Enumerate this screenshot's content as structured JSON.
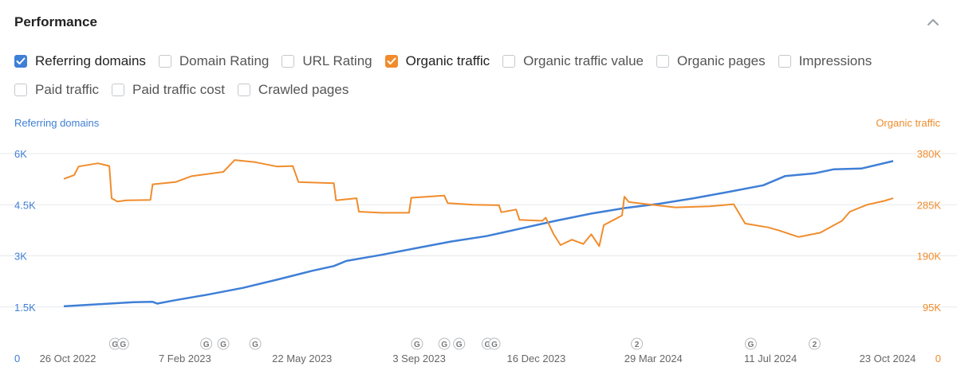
{
  "header": {
    "title": "Performance"
  },
  "metrics": [
    {
      "label": "Referring domains",
      "checked": true,
      "color": "#3f7fd6"
    },
    {
      "label": "Domain Rating",
      "checked": false
    },
    {
      "label": "URL Rating",
      "checked": false
    },
    {
      "label": "Organic traffic",
      "checked": true,
      "color": "#f08c2c"
    },
    {
      "label": "Organic traffic value",
      "checked": false
    },
    {
      "label": "Organic pages",
      "checked": false
    },
    {
      "label": "Impressions",
      "checked": false
    },
    {
      "label": "Paid traffic",
      "checked": false
    },
    {
      "label": "Paid traffic cost",
      "checked": false
    },
    {
      "label": "Crawled pages",
      "checked": false
    }
  ],
  "chart_data": {
    "type": "line",
    "left_axis_title": "Referring domains",
    "right_axis_title": "Organic traffic",
    "left_ticks": [
      "6K",
      "4.5K",
      "3K",
      "1.5K",
      "0"
    ],
    "right_ticks": [
      "380K",
      "285K",
      "190K",
      "95K",
      "0"
    ],
    "left_ylim": [
      0,
      6000
    ],
    "right_ylim": [
      0,
      380000
    ],
    "grid": true,
    "x_range": [
      "2022-10-26",
      "2024-10-23"
    ],
    "x_ticks": [
      "26 Oct 2022",
      "7 Feb 2023",
      "22 May 2023",
      "3 Sep 2023",
      "16 Dec 2023",
      "29 Mar 2024",
      "11 Jul 2024",
      "23 Oct 2024"
    ],
    "markers": [
      {
        "date": "2022-12-10",
        "label": "G"
      },
      {
        "date": "2022-12-17",
        "label": "G"
      },
      {
        "date": "2023-02-28",
        "label": "G"
      },
      {
        "date": "2023-03-15",
        "label": "G"
      },
      {
        "date": "2023-04-12",
        "label": "G"
      },
      {
        "date": "2023-09-01",
        "label": "G"
      },
      {
        "date": "2023-09-25",
        "label": "G"
      },
      {
        "date": "2023-10-08",
        "label": "G"
      },
      {
        "date": "2023-11-02",
        "label": "G"
      },
      {
        "date": "2023-11-08",
        "label": "G"
      },
      {
        "date": "2024-03-12",
        "label": "2"
      },
      {
        "date": "2024-06-20",
        "label": "G"
      },
      {
        "date": "2024-08-15",
        "label": "2"
      }
    ],
    "series": [
      {
        "name": "Referring domains",
        "axis": "left",
        "color": "#3f7fd6",
        "points": [
          [
            "2022-10-26",
            1520
          ],
          [
            "2022-11-26",
            1580
          ],
          [
            "2022-12-26",
            1640
          ],
          [
            "2023-01-12",
            1650
          ],
          [
            "2023-01-16",
            1600
          ],
          [
            "2023-02-01",
            1700
          ],
          [
            "2023-03-01",
            1860
          ],
          [
            "2023-04-01",
            2060
          ],
          [
            "2023-05-01",
            2300
          ],
          [
            "2023-06-01",
            2560
          ],
          [
            "2023-06-20",
            2700
          ],
          [
            "2023-07-01",
            2850
          ],
          [
            "2023-08-01",
            3030
          ],
          [
            "2023-09-01",
            3230
          ],
          [
            "2023-10-01",
            3420
          ],
          [
            "2023-11-01",
            3580
          ],
          [
            "2023-12-01",
            3800
          ],
          [
            "2024-01-01",
            4030
          ],
          [
            "2024-02-01",
            4240
          ],
          [
            "2024-03-01",
            4400
          ],
          [
            "2024-04-01",
            4530
          ],
          [
            "2024-05-01",
            4690
          ],
          [
            "2024-06-01",
            4880
          ],
          [
            "2024-07-01",
            5070
          ],
          [
            "2024-07-20",
            5340
          ],
          [
            "2024-08-15",
            5420
          ],
          [
            "2024-09-01",
            5540
          ],
          [
            "2024-09-25",
            5560
          ],
          [
            "2024-10-23",
            5780
          ]
        ]
      },
      {
        "name": "Organic traffic",
        "axis": "right",
        "color": "#f08c2c",
        "points": [
          [
            "2022-10-26",
            333000
          ],
          [
            "2022-11-04",
            340000
          ],
          [
            "2022-11-08",
            356000
          ],
          [
            "2022-11-25",
            362000
          ],
          [
            "2022-12-05",
            357000
          ],
          [
            "2022-12-07",
            297000
          ],
          [
            "2022-12-12",
            291000
          ],
          [
            "2022-12-20",
            293000
          ],
          [
            "2023-01-10",
            294000
          ],
          [
            "2023-01-12",
            323000
          ],
          [
            "2023-02-01",
            327000
          ],
          [
            "2023-02-15",
            338000
          ],
          [
            "2023-03-15",
            346000
          ],
          [
            "2023-03-25",
            368000
          ],
          [
            "2023-04-12",
            364000
          ],
          [
            "2023-05-01",
            356000
          ],
          [
            "2023-05-15",
            357000
          ],
          [
            "2023-05-20",
            327000
          ],
          [
            "2023-06-20",
            325000
          ],
          [
            "2023-06-22",
            293000
          ],
          [
            "2023-07-10",
            297000
          ],
          [
            "2023-07-12",
            272000
          ],
          [
            "2023-08-01",
            270000
          ],
          [
            "2023-08-25",
            270000
          ],
          [
            "2023-08-27",
            298000
          ],
          [
            "2023-09-25",
            302000
          ],
          [
            "2023-09-28",
            288000
          ],
          [
            "2023-10-20",
            285000
          ],
          [
            "2023-11-12",
            284000
          ],
          [
            "2023-11-14",
            271000
          ],
          [
            "2023-11-27",
            276000
          ],
          [
            "2023-11-30",
            257000
          ],
          [
            "2023-12-20",
            255000
          ],
          [
            "2023-12-23",
            261000
          ],
          [
            "2023-12-30",
            230000
          ],
          [
            "2024-01-05",
            210000
          ],
          [
            "2024-01-15",
            220000
          ],
          [
            "2024-01-25",
            212000
          ],
          [
            "2024-02-01",
            230000
          ],
          [
            "2024-02-08",
            208000
          ],
          [
            "2024-02-12",
            247000
          ],
          [
            "2024-02-28",
            265000
          ],
          [
            "2024-03-01",
            300000
          ],
          [
            "2024-03-05",
            290000
          ],
          [
            "2024-03-25",
            285000
          ],
          [
            "2024-04-15",
            280000
          ],
          [
            "2024-05-15",
            282000
          ],
          [
            "2024-06-05",
            286000
          ],
          [
            "2024-06-15",
            250000
          ],
          [
            "2024-07-05",
            243000
          ],
          [
            "2024-07-15",
            237000
          ],
          [
            "2024-08-01",
            225000
          ],
          [
            "2024-08-20",
            233000
          ],
          [
            "2024-09-08",
            255000
          ],
          [
            "2024-09-15",
            272000
          ],
          [
            "2024-09-30",
            285000
          ],
          [
            "2024-10-15",
            292000
          ],
          [
            "2024-10-23",
            297000
          ]
        ]
      }
    ]
  }
}
